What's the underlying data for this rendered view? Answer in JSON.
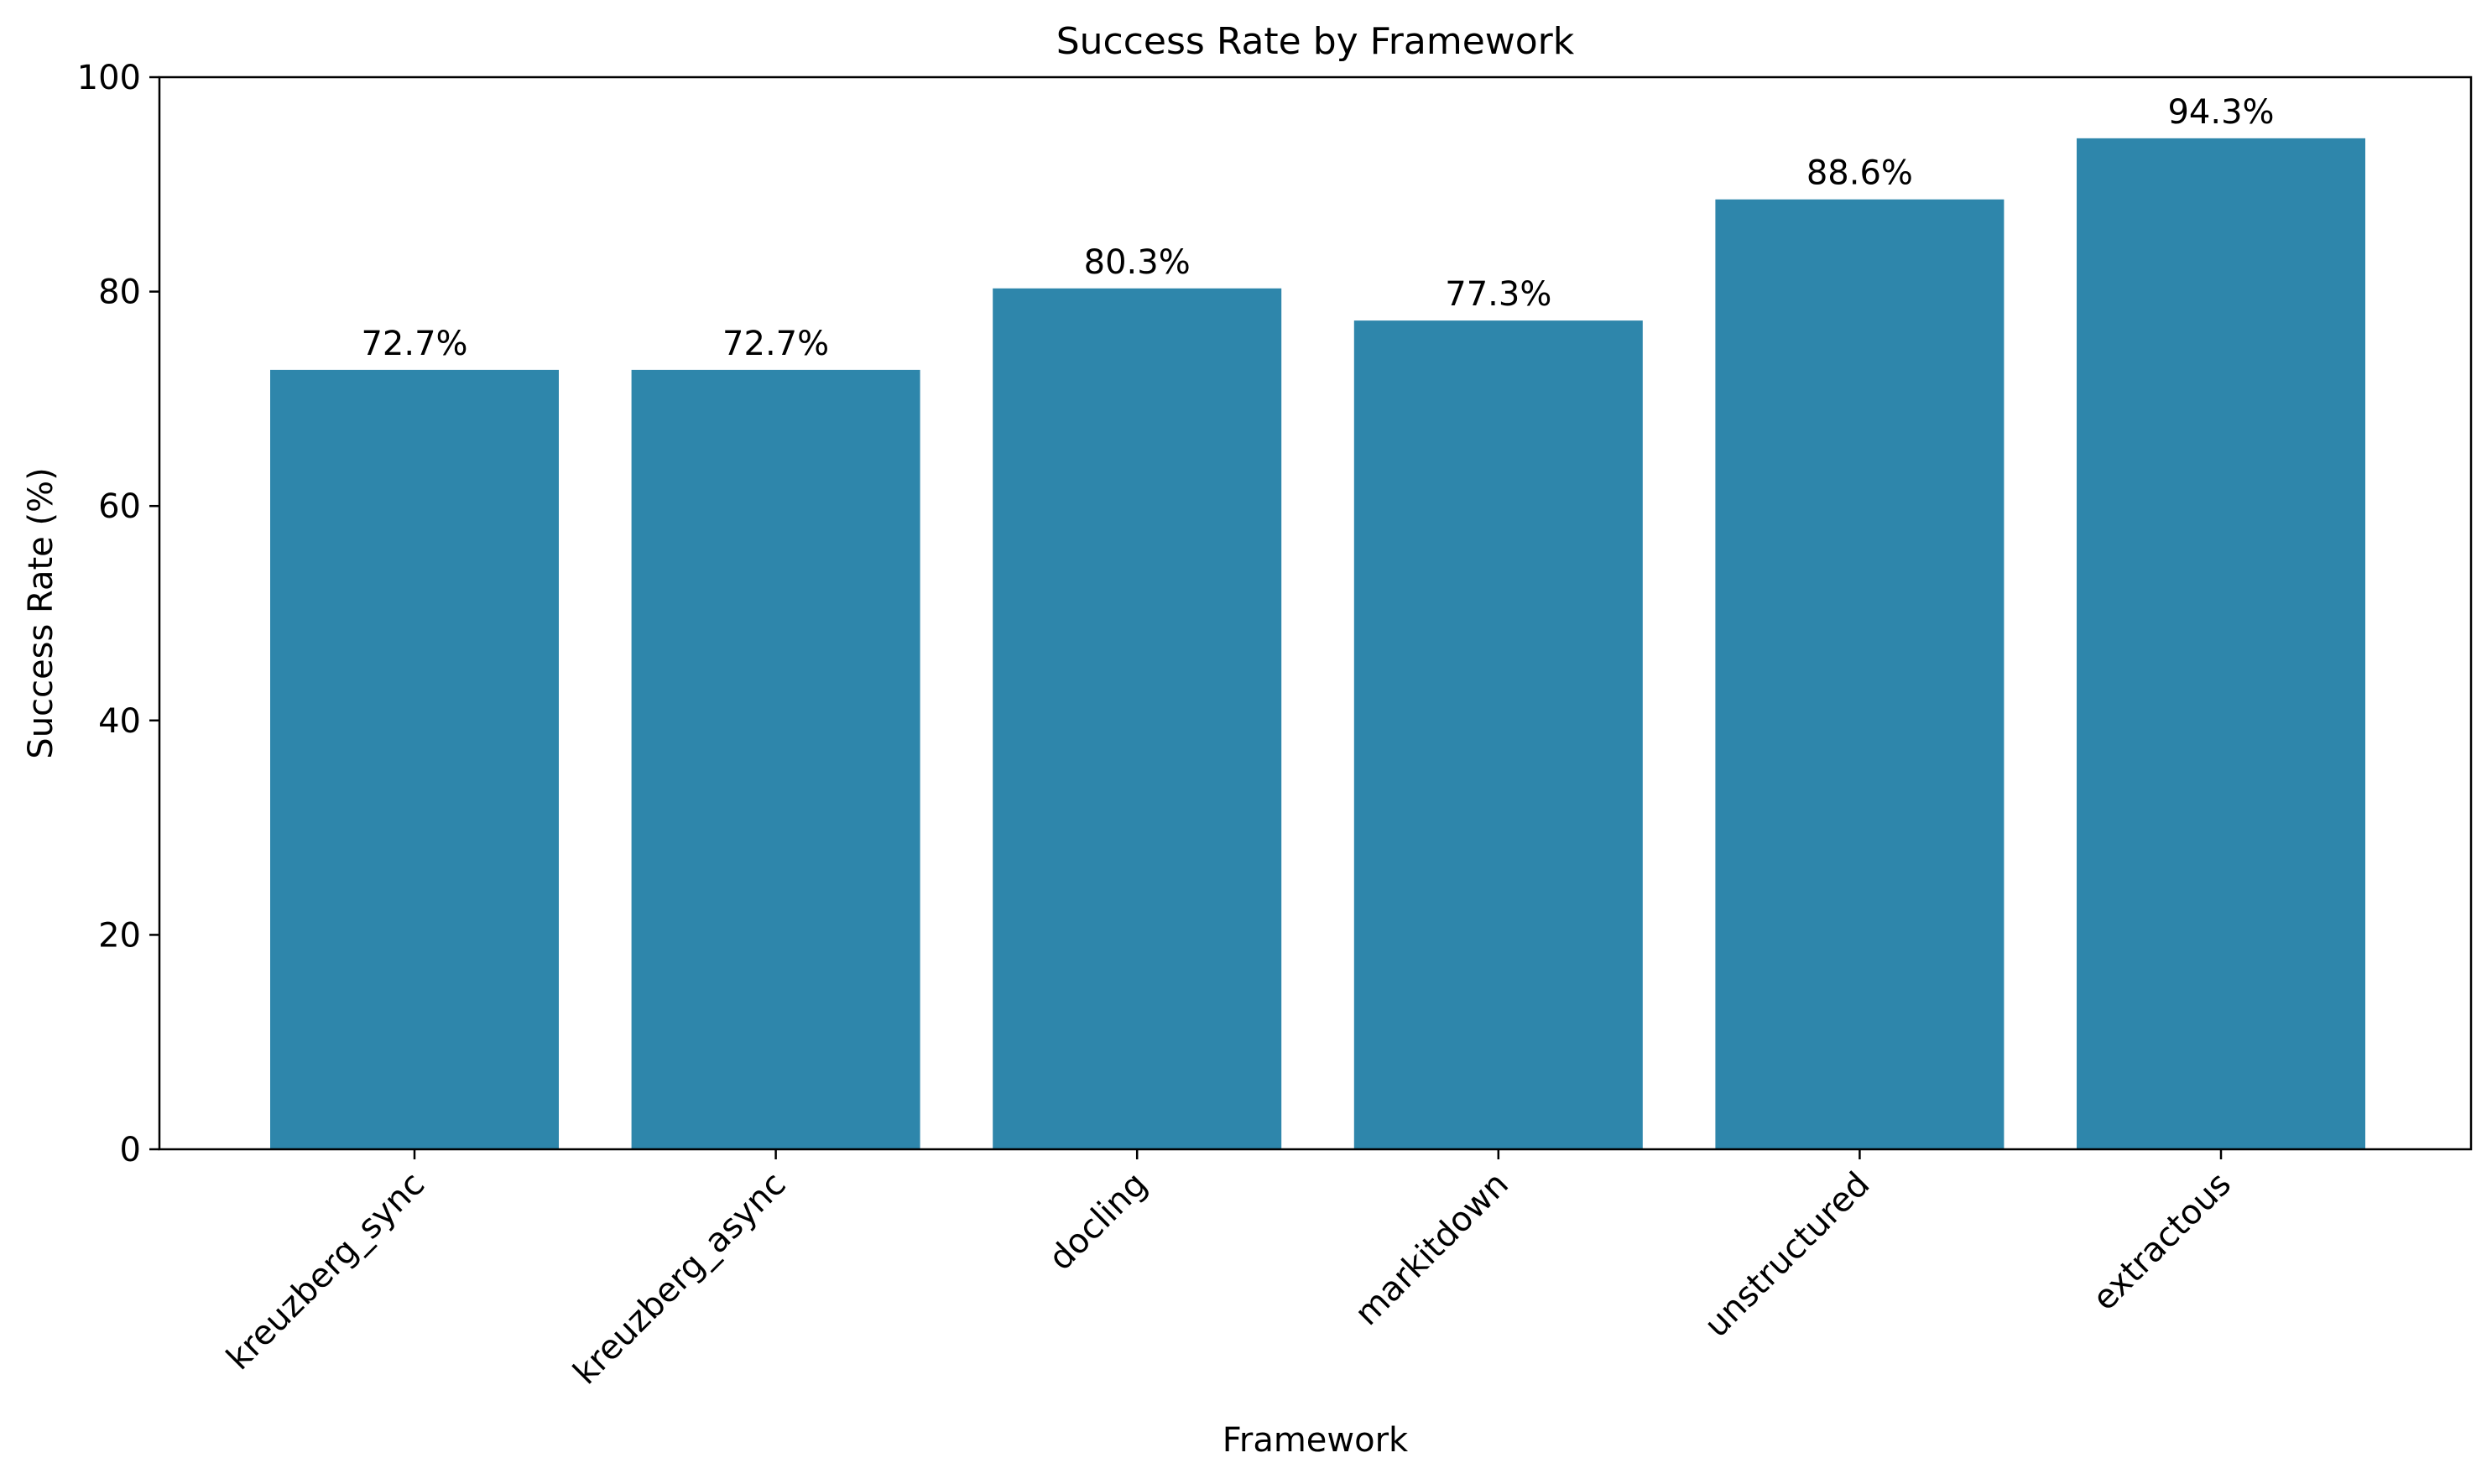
{
  "chart_data": {
    "type": "bar",
    "title": "Success Rate by Framework",
    "xlabel": "Framework",
    "ylabel": "Success Rate (%)",
    "categories": [
      "kreuzberg_sync",
      "kreuzberg_async",
      "docling",
      "markitdown",
      "unstructured",
      "extractous"
    ],
    "values": [
      72.7,
      72.7,
      80.3,
      77.3,
      88.6,
      94.3
    ],
    "value_labels": [
      "72.7%",
      "72.7%",
      "80.3%",
      "77.3%",
      "88.6%",
      "94.3%"
    ],
    "ylim": [
      0,
      100
    ],
    "yticks": [
      0,
      20,
      40,
      60,
      80,
      100
    ],
    "bar_color": "#2e86ab",
    "grid": false,
    "legend": "none"
  }
}
